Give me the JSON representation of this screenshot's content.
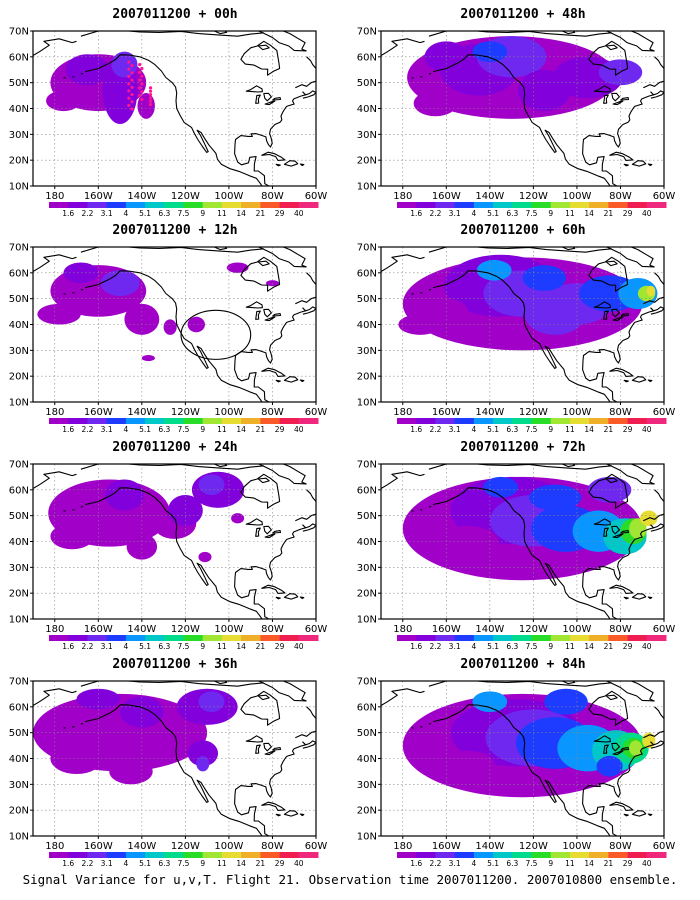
{
  "figure": {
    "caption": "Signal Variance for u,v,T. Flight 21. Observation time 2007011200. 2007010800 ensemble."
  },
  "axes": {
    "lat_ticks": [
      "70N",
      "60N",
      "50N",
      "40N",
      "30N",
      "20N",
      "10N"
    ],
    "lon_ticks": [
      "180",
      "160W",
      "140W",
      "120W",
      "100W",
      "80W",
      "60W"
    ],
    "grid": "dotted"
  },
  "colorbar": {
    "labels": [
      "1.6",
      "2.2",
      "3.1",
      "4",
      "5.1",
      "6.3",
      "7.5",
      "9",
      "11",
      "14",
      "21",
      "29",
      "40"
    ],
    "colors": [
      "#a000c8",
      "#8200dc",
      "#6e28f0",
      "#1e3cff",
      "#0a96ff",
      "#00c8c8",
      "#00dc8c",
      "#28dc28",
      "#a0e632",
      "#e6dc32",
      "#f0af28",
      "#fa5a28",
      "#f01e50",
      "#f0287d"
    ]
  },
  "panels": [
    {
      "title": "2007011200 + 00h",
      "level": 0,
      "column": "left"
    },
    {
      "title": "2007011200 + 12h",
      "level": 1,
      "column": "left"
    },
    {
      "title": "2007011200 + 24h",
      "level": 2,
      "column": "left"
    },
    {
      "title": "2007011200 + 36h",
      "level": 3,
      "column": "left"
    },
    {
      "title": "2007011200 + 48h",
      "level": 4,
      "column": "right"
    },
    {
      "title": "2007011200 + 60h",
      "level": 5,
      "column": "right"
    },
    {
      "title": "2007011200 + 72h",
      "level": 6,
      "column": "right"
    },
    {
      "title": "2007011200 + 84h",
      "level": 7,
      "column": "right"
    }
  ]
}
